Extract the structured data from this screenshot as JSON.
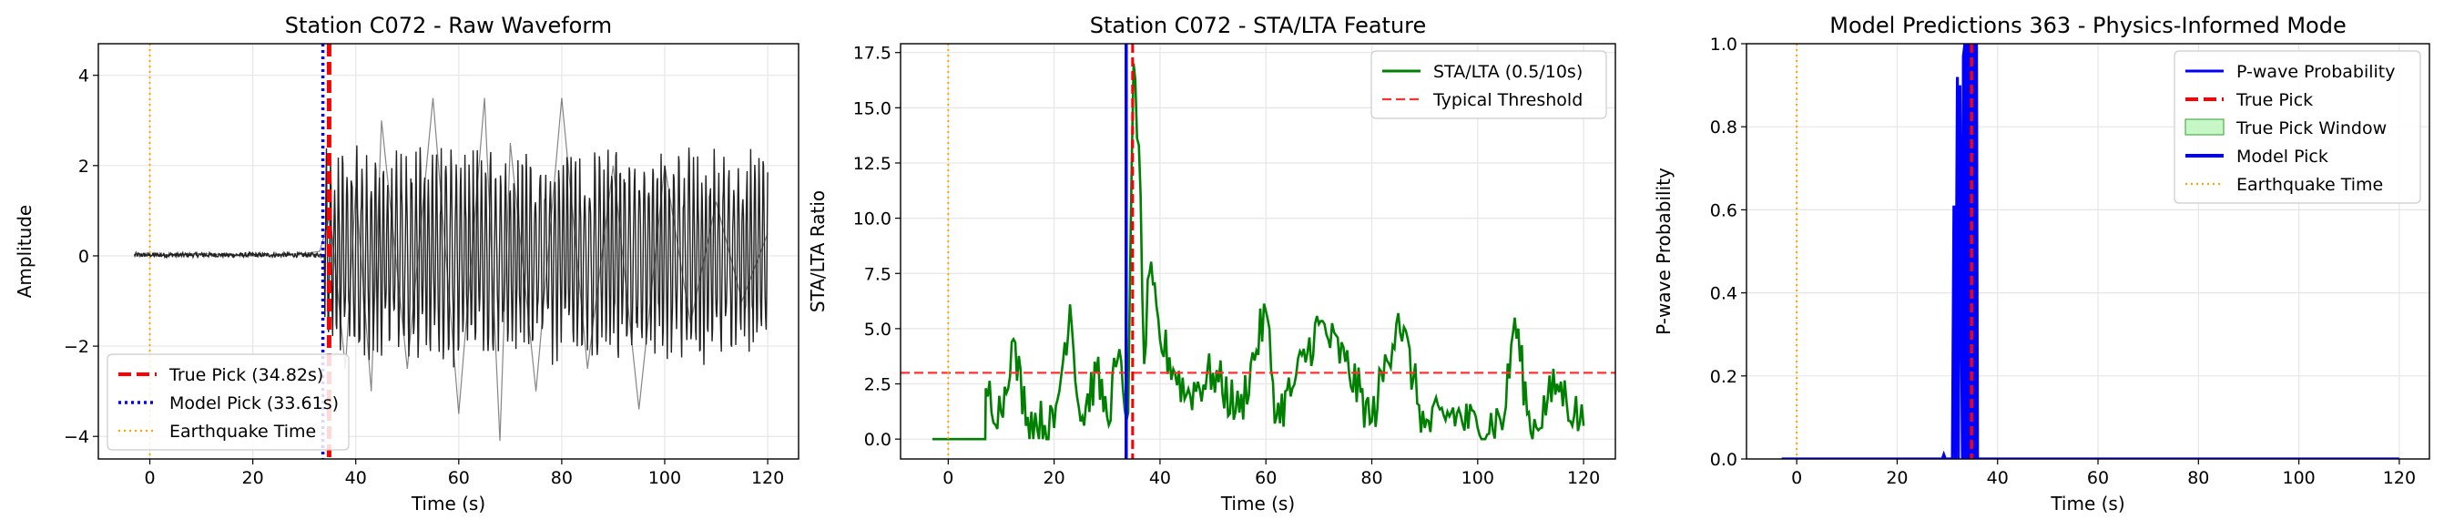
{
  "chart_data": [
    {
      "type": "line",
      "title": "Station C072 - Raw Waveform",
      "xlabel": "Time (s)",
      "ylabel": "Amplitude",
      "xlim": [
        -10,
        126
      ],
      "ylim": [
        -4.5,
        4.7
      ],
      "xticks": [
        0,
        20,
        40,
        60,
        80,
        100,
        120
      ],
      "yticks": [
        -4,
        -2,
        0,
        2,
        4
      ],
      "ytick_labels": [
        "−4",
        "−2",
        "0",
        "2",
        "4"
      ],
      "grid": true,
      "legend_position": "bottom-left",
      "waveform": {
        "t_start": -3,
        "t_end": 120,
        "onset": 34,
        "pre_noise_amplitude": 0.05,
        "post_amplitude_envelope": 2.5,
        "x": [
          -3,
          10,
          20,
          30,
          33,
          35,
          38,
          40,
          43,
          45,
          50,
          55,
          60,
          65,
          68,
          70,
          75,
          80,
          85,
          90,
          95,
          100,
          105,
          110,
          115,
          120
        ],
        "y": [
          0.0,
          0.05,
          0.0,
          0.05,
          0.1,
          0.9,
          -2.5,
          1.5,
          -3.0,
          3.0,
          -2.5,
          3.5,
          -3.5,
          3.5,
          -4.1,
          2.5,
          -3.0,
          3.5,
          -2.5,
          2.0,
          -3.4,
          2.0,
          -1.5,
          1.2,
          -1.0,
          0.5
        ]
      },
      "series": [
        {
          "name": "True Pick (34.82s)",
          "kind": "vline",
          "x": 34.82,
          "color": "#ff0000",
          "style": "dashed"
        },
        {
          "name": "Model Pick (33.61s)",
          "kind": "vline",
          "x": 33.61,
          "color": "#0000ff",
          "style": "dotted"
        },
        {
          "name": "Earthquake Time",
          "kind": "vline",
          "x": 0,
          "color": "#ffa500",
          "style": "dotted"
        }
      ],
      "waveform_color": "#222222"
    },
    {
      "type": "line",
      "title": "Station C072 - STA/LTA Feature",
      "xlabel": "Time (s)",
      "ylabel": "STA/LTA Ratio",
      "xlim": [
        -9,
        126
      ],
      "ylim": [
        -0.9,
        17.9
      ],
      "xticks": [
        0,
        20,
        40,
        60,
        80,
        100,
        120
      ],
      "yticks": [
        0.0,
        2.5,
        5.0,
        7.5,
        10.0,
        12.5,
        15.0,
        17.5
      ],
      "ytick_labels": [
        "0.0",
        "2.5",
        "5.0",
        "7.5",
        "10.0",
        "12.5",
        "15.0",
        "17.5"
      ],
      "grid": true,
      "legend_position": "top-right",
      "stalta": {
        "x": [
          -3,
          7,
          7.1,
          10,
          12,
          15,
          20,
          23,
          25,
          28,
          30,
          32,
          34,
          35,
          36,
          37,
          38,
          40,
          45,
          50,
          55,
          60,
          62,
          65,
          70,
          75,
          80,
          85,
          90,
          95,
          100,
          105,
          107,
          110,
          115,
          120
        ],
        "y": [
          0.0,
          0.0,
          2.3,
          1.2,
          4.4,
          1.0,
          0.5,
          6.1,
          0.8,
          3.0,
          1.0,
          3.6,
          1.2,
          17.0,
          13.3,
          3.4,
          7.5,
          4.5,
          2.0,
          3.0,
          1.2,
          5.8,
          1.0,
          2.3,
          5.2,
          3.5,
          0.8,
          5.7,
          0.5,
          1.2,
          0.5,
          1.0,
          5.5,
          0.3,
          2.5,
          0.6
        ]
      },
      "series": [
        {
          "name": "STA/LTA (0.5/10s)",
          "kind": "line",
          "color": "#008000"
        },
        {
          "name": "Typical Threshold",
          "kind": "hline",
          "y": 3.0,
          "color": "#ff3030",
          "style": "dashed"
        },
        {
          "name": "True Pick",
          "kind": "vline",
          "x": 34.82,
          "color": "#ff0000",
          "style": "dashed"
        },
        {
          "name": "Model Pick",
          "kind": "vline",
          "x": 33.61,
          "color": "#0000ff",
          "style": "solid"
        },
        {
          "name": "Earthquake Time",
          "kind": "vline",
          "x": 0,
          "color": "#ffa500",
          "style": "dotted"
        }
      ]
    },
    {
      "type": "line",
      "title": "Model Predictions 363 - Physics-Informed Mode",
      "xlabel": "Time (s)",
      "ylabel": "P-wave Probability",
      "xlim": [
        -10,
        126
      ],
      "ylim": [
        0.0,
        1.0
      ],
      "xticks": [
        0,
        20,
        40,
        60,
        80,
        100,
        120
      ],
      "yticks": [
        0.0,
        0.2,
        0.4,
        0.6,
        0.8,
        1.0
      ],
      "ytick_labels": [
        "0.0",
        "0.2",
        "0.4",
        "0.6",
        "0.8",
        "1.0"
      ],
      "grid": true,
      "legend_position": "top-right",
      "probability": {
        "x": [
          -3,
          29,
          29.3,
          29.6,
          31,
          31.3,
          31.6,
          32,
          32.2,
          32.5,
          33,
          33.2,
          33.5,
          34,
          35,
          35.8,
          36,
          120
        ],
        "y": [
          0.0,
          0.0,
          0.01,
          0.0,
          0.0,
          0.61,
          0.0,
          0.92,
          0.0,
          0.9,
          0.0,
          0.97,
          1.0,
          1.0,
          1.0,
          1.0,
          0.0,
          0.0
        ]
      },
      "true_pick_window": [
        33.82,
        35.82
      ],
      "series": [
        {
          "name": "P-wave Probability",
          "kind": "line",
          "color": "#0000ff"
        },
        {
          "name": "True Pick",
          "kind": "vline",
          "x": 34.82,
          "color": "#ff0000",
          "style": "dashed"
        },
        {
          "name": "True Pick Window",
          "kind": "span",
          "color": "#90ee90"
        },
        {
          "name": "Model Pick",
          "kind": "vline",
          "x": 33.61,
          "color": "#0000ff",
          "style": "solid"
        },
        {
          "name": "Earthquake Time",
          "kind": "vline",
          "x": 0,
          "color": "#ffa500",
          "style": "dotted"
        }
      ]
    }
  ]
}
